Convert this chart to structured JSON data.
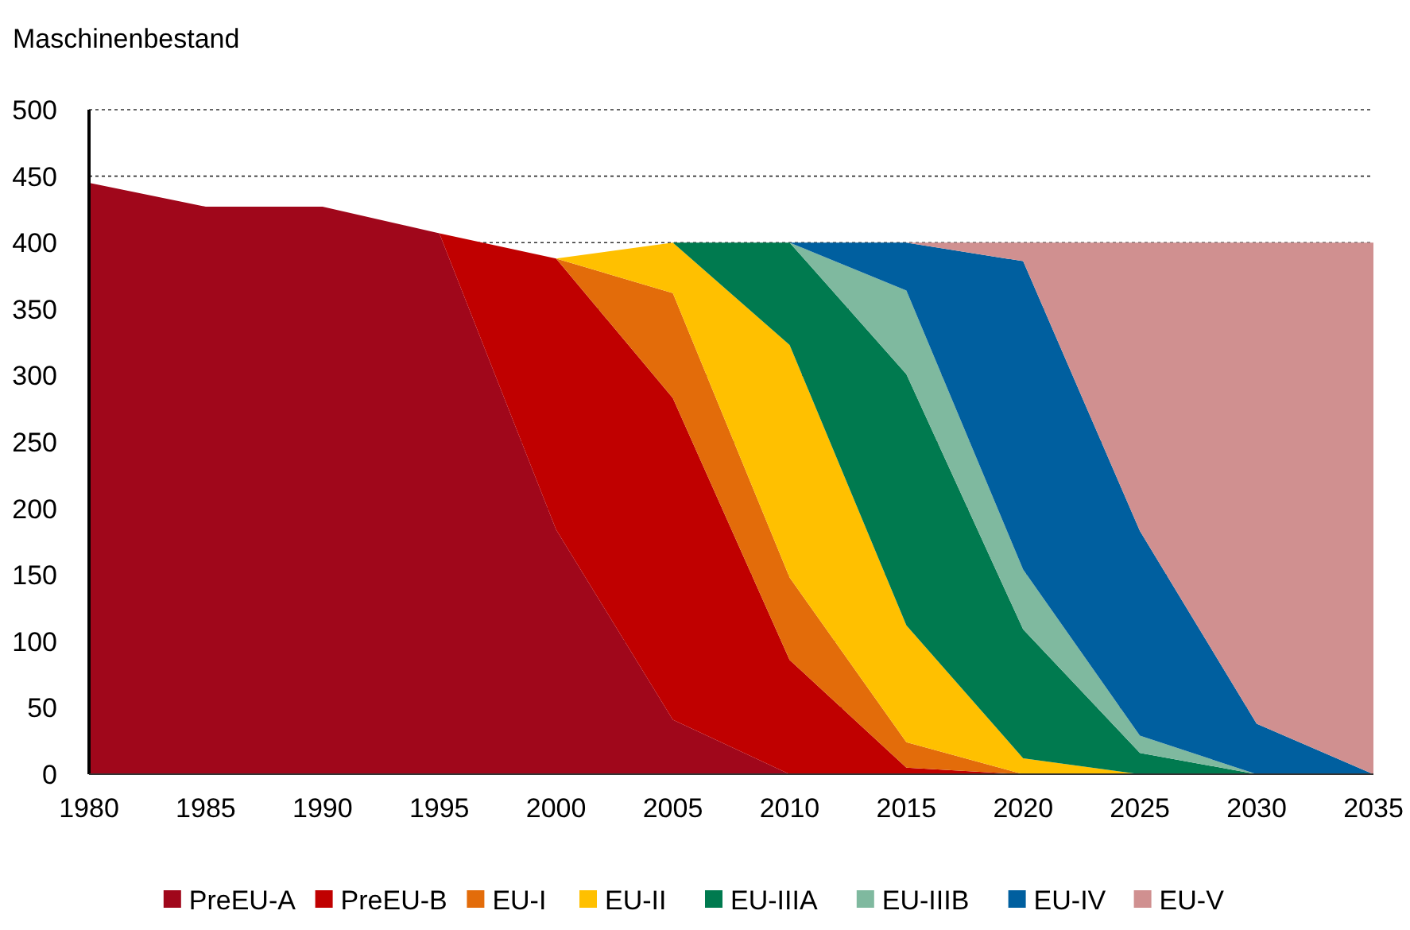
{
  "chart_data": {
    "type": "area",
    "stacked": true,
    "ylabel": "Maschinenbestand",
    "x": [
      1980,
      1985,
      1990,
      1995,
      2000,
      2005,
      2010,
      2015,
      2020,
      2025,
      2030,
      2035
    ],
    "xlim": [
      1980,
      2035
    ],
    "xticks": [
      1980,
      1985,
      1990,
      1995,
      2000,
      2005,
      2010,
      2015,
      2020,
      2025,
      2030,
      2035
    ],
    "ylim": [
      0,
      500
    ],
    "yticks": [
      0,
      50,
      100,
      150,
      200,
      250,
      300,
      350,
      400,
      450,
      500
    ],
    "grid": "y",
    "legend": "bottom",
    "series": [
      {
        "name": "PreEU-A",
        "color": "#a0071b",
        "values": [
          445,
          427,
          427,
          407,
          184,
          41,
          0,
          0,
          0,
          0,
          0,
          0
        ]
      },
      {
        "name": "PreEU-B",
        "color": "#c00000",
        "values": [
          null,
          null,
          null,
          0,
          204,
          242,
          86,
          5,
          0,
          null,
          null,
          null
        ]
      },
      {
        "name": "EU-I",
        "color": "#e36c0a",
        "values": [
          null,
          null,
          null,
          null,
          0,
          79,
          62,
          19,
          0,
          null,
          null,
          null
        ]
      },
      {
        "name": "EU-II",
        "color": "#ffc000",
        "values": [
          null,
          null,
          null,
          null,
          0,
          38,
          175,
          88,
          12,
          0,
          null,
          null
        ]
      },
      {
        "name": "EU-IIIA",
        "color": "#007a4f",
        "values": [
          null,
          null,
          null,
          null,
          null,
          0,
          77,
          189,
          97,
          16,
          0,
          null
        ]
      },
      {
        "name": "EU-IIIB",
        "color": "#7fb99f",
        "values": [
          null,
          null,
          null,
          null,
          null,
          null,
          0,
          63,
          45,
          13,
          0,
          null
        ]
      },
      {
        "name": "EU-IV",
        "color": "#005f9f",
        "values": [
          null,
          null,
          null,
          null,
          null,
          null,
          0,
          36,
          232,
          154,
          38,
          0
        ]
      },
      {
        "name": "EU-V",
        "color": "#d09090",
        "values": [
          null,
          null,
          null,
          null,
          null,
          null,
          null,
          0,
          14,
          217,
          362,
          400
        ]
      }
    ]
  }
}
